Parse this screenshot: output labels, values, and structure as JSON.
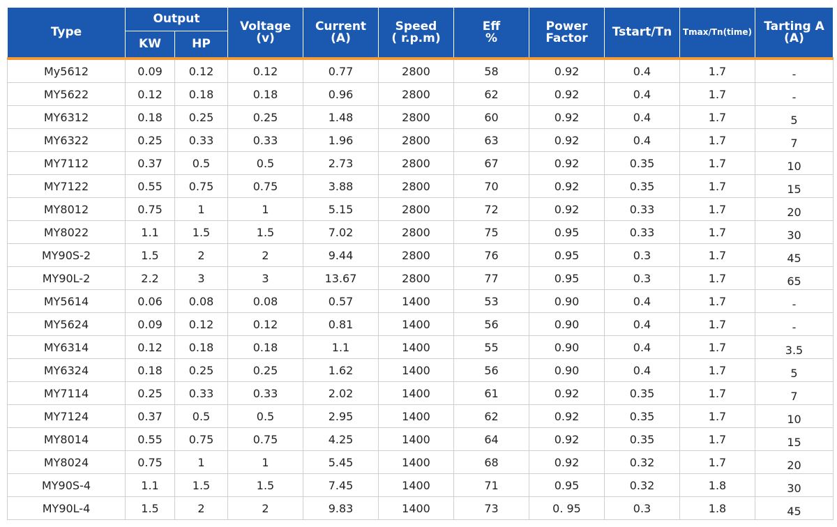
{
  "headers": {
    "type": "Type",
    "output": "Output",
    "kw": "KW",
    "hp": "HP",
    "voltage": "Voltage\n(v)",
    "current": "Current\n(A)",
    "speed": "Speed\n( r.p.m)",
    "eff": "Eff\n%",
    "pf": "Power\nFactor",
    "tstart": "Tstart/Tn",
    "tmax": "Tmax/Tn(time)",
    "tarting": "Tarting A\n(A)"
  },
  "rows": [
    [
      "My5612",
      "0.09",
      "0.12",
      "0.12",
      "0.77",
      "2800",
      "58",
      "0.92",
      "0.4",
      "1.7",
      "-"
    ],
    [
      "MY5622",
      "0.12",
      "0.18",
      "0.18",
      "0.96",
      "2800",
      "62",
      "0.92",
      "0.4",
      "1.7",
      "-"
    ],
    [
      "MY6312",
      "0.18",
      "0.25",
      "0.25",
      "1.48",
      "2800",
      "60",
      "0.92",
      "0.4",
      "1.7",
      "5"
    ],
    [
      "MY6322",
      "0.25",
      "0.33",
      "0.33",
      "1.96",
      "2800",
      "63",
      "0.92",
      "0.4",
      "1.7",
      "7"
    ],
    [
      "MY7112",
      "0.37",
      "0.5",
      "0.5",
      "2.73",
      "2800",
      "67",
      "0.92",
      "0.35",
      "1.7",
      "10"
    ],
    [
      "MY7122",
      "0.55",
      "0.75",
      "0.75",
      "3.88",
      "2800",
      "70",
      "0.92",
      "0.35",
      "1.7",
      "15"
    ],
    [
      "MY8012",
      "0.75",
      "1",
      "1",
      "5.15",
      "2800",
      "72",
      "0.92",
      "0.33",
      "1.7",
      "20"
    ],
    [
      "MY8022",
      "1.1",
      "1.5",
      "1.5",
      "7.02",
      "2800",
      "75",
      "0.95",
      "0.33",
      "1.7",
      "30"
    ],
    [
      "MY90S-2",
      "1.5",
      "2",
      "2",
      "9.44",
      "2800",
      "76",
      "0.95",
      "0.3",
      "1.7",
      "45"
    ],
    [
      "MY90L-2",
      "2.2",
      "3",
      "3",
      "13.67",
      "2800",
      "77",
      "0.95",
      "0.3",
      "1.7",
      "65"
    ],
    [
      "MY5614",
      "0.06",
      "0.08",
      "0.08",
      "0.57",
      "1400",
      "53",
      "0.90",
      "0.4",
      "1.7",
      "-"
    ],
    [
      "MY5624",
      "0.09",
      "0.12",
      "0.12",
      "0.81",
      "1400",
      "56",
      "0.90",
      "0.4",
      "1.7",
      "-"
    ],
    [
      "MY6314",
      "0.12",
      "0.18",
      "0.18",
      "1.1",
      "1400",
      "55",
      "0.90",
      "0.4",
      "1.7",
      "3.5"
    ],
    [
      "MY6324",
      "0.18",
      "0.25",
      "0.25",
      "1.62",
      "1400",
      "56",
      "0.90",
      "0.4",
      "1.7",
      "5"
    ],
    [
      "MY7114",
      "0.25",
      "0.33",
      "0.33",
      "2.02",
      "1400",
      "61",
      "0.92",
      "0.35",
      "1.7",
      "7"
    ],
    [
      "MY7124",
      "0.37",
      "0.5",
      "0.5",
      "2.95",
      "1400",
      "62",
      "0.92",
      "0.35",
      "1.7",
      "10"
    ],
    [
      "MY8014",
      "0.55",
      "0.75",
      "0.75",
      "4.25",
      "1400",
      "64",
      "0.92",
      "0.35",
      "1.7",
      "15"
    ],
    [
      "MY8024",
      "0.75",
      "1",
      "1",
      "5.45",
      "1400",
      "68",
      "0.92",
      "0.32",
      "1.7",
      "20"
    ],
    [
      "MY90S-4",
      "1.1",
      "1.5",
      "1.5",
      "7.45",
      "1400",
      "71",
      "0.95",
      "0.32",
      "1.8",
      "30"
    ],
    [
      "MY90L-4",
      "1.5",
      "2",
      "2",
      "9.83",
      "1400",
      "73",
      "0. 95",
      "0.3",
      "1.8",
      "45"
    ]
  ],
  "colors": {
    "header_bg": "#1b59b0",
    "header_text": "#ffffff",
    "accent_line": "#f39a36",
    "grid": "#cfcfcf"
  }
}
